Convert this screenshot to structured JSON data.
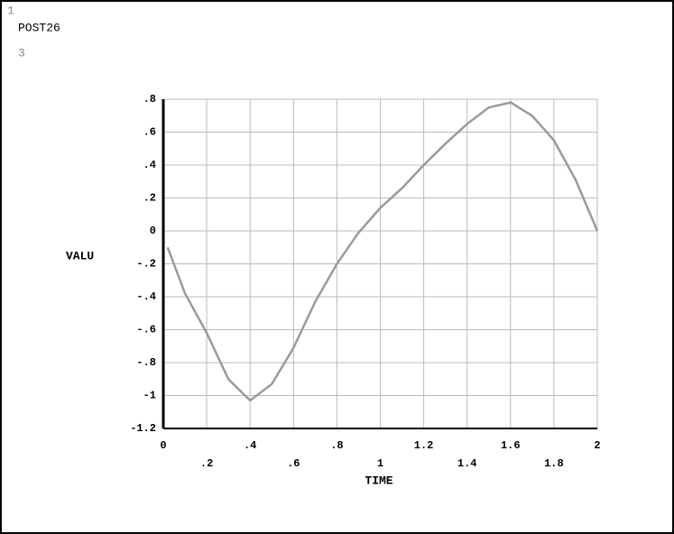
{
  "chart_data": {
    "type": "line",
    "annotations": [
      "1",
      "POST26",
      "3"
    ],
    "xlabel": "TIME",
    "ylabel": "VALU",
    "x": [
      0.02,
      0.1,
      0.2,
      0.3,
      0.4,
      0.5,
      0.6,
      0.7,
      0.8,
      0.9,
      1.0,
      1.1,
      1.2,
      1.3,
      1.4,
      1.5,
      1.6,
      1.7,
      1.8,
      1.9,
      2.0
    ],
    "series": [
      {
        "color": "#9a9a9a",
        "values": [
          -0.1,
          -0.38,
          -0.62,
          -0.9,
          -1.03,
          -0.93,
          -0.71,
          -0.43,
          -0.2,
          -0.01,
          0.14,
          0.26,
          0.4,
          0.53,
          0.65,
          0.75,
          0.78,
          0.7,
          0.55,
          0.31,
          0.0
        ]
      }
    ],
    "xlim": [
      0,
      2
    ],
    "ylim": [
      -1.2,
      0.8
    ],
    "xticks": [
      0,
      {
        "value": 0.2,
        "label": ".2"
      },
      {
        "value": 0.4,
        "label": ".4"
      },
      {
        "value": 0.6,
        "label": ".6"
      },
      {
        "value": 0.8,
        "label": ".8"
      },
      1,
      1.2,
      1.4,
      1.6,
      1.8,
      2
    ],
    "yticks": [
      {
        "value": 0.8,
        "label": ".8"
      },
      {
        "value": 0.6,
        "label": ".6"
      },
      {
        "value": 0.4,
        "label": ".4"
      },
      {
        "value": 0.2,
        "label": ".2"
      },
      0,
      {
        "value": -0.2,
        "label": "-.2"
      },
      {
        "value": -0.4,
        "label": "-.4"
      },
      {
        "value": -0.6,
        "label": "-.6"
      },
      {
        "value": -0.8,
        "label": "-.8"
      },
      -1,
      -1.2
    ],
    "grid": true
  }
}
